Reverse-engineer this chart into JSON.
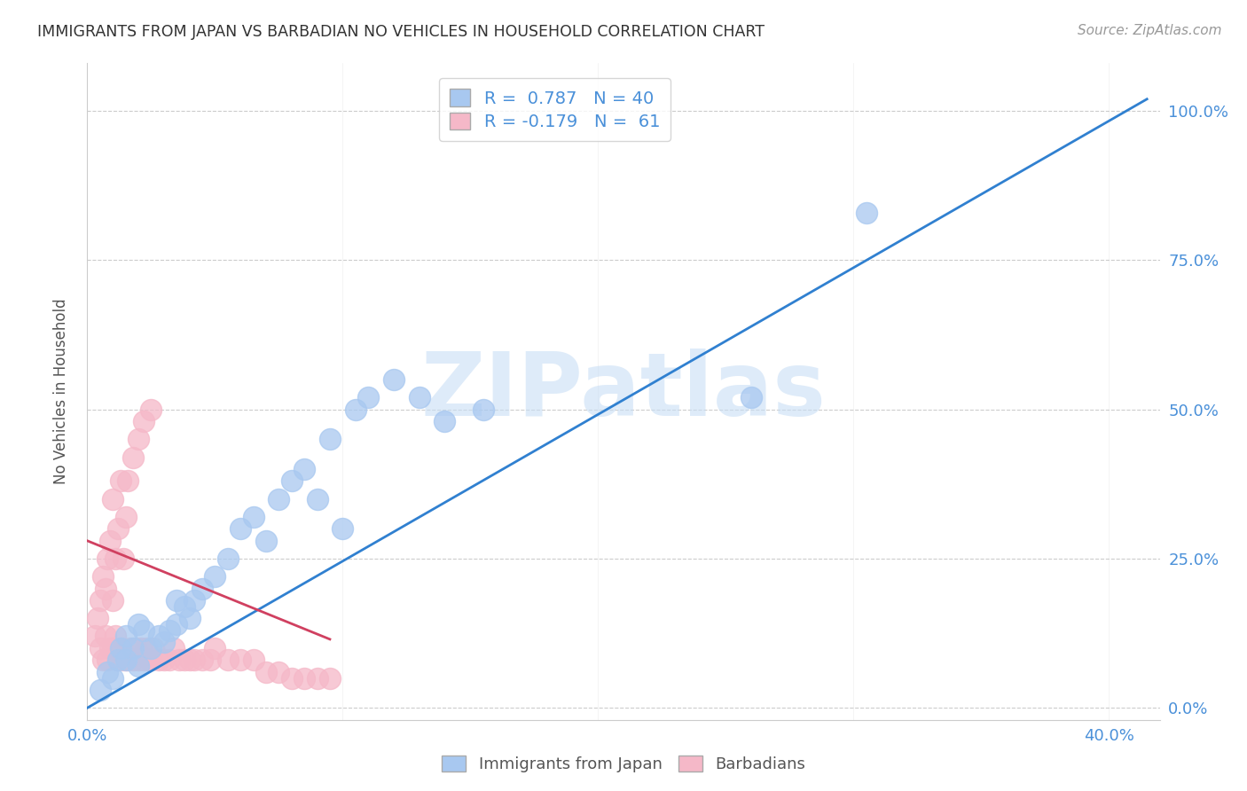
{
  "title": "IMMIGRANTS FROM JAPAN VS BARBADIAN NO VEHICLES IN HOUSEHOLD CORRELATION CHART",
  "source": "Source: ZipAtlas.com",
  "ylabel": "No Vehicles in Household",
  "xlim": [
    0.0,
    0.42
  ],
  "ylim": [
    -0.02,
    1.08
  ],
  "x_ticks": [
    0.0,
    0.1,
    0.2,
    0.3,
    0.4
  ],
  "x_tick_labels": [
    "0.0%",
    "",
    "",
    "",
    "40.0%"
  ],
  "y_ticks": [
    0.0,
    0.25,
    0.5,
    0.75,
    1.0
  ],
  "blue_R": 0.787,
  "blue_N": 40,
  "pink_R": -0.179,
  "pink_N": 61,
  "blue_color": "#A8C8F0",
  "pink_color": "#F5B8C8",
  "blue_line_color": "#3080D0",
  "pink_line_color": "#D04060",
  "watermark": "ZIPatlas",
  "legend_label_blue": "Immigrants from Japan",
  "legend_label_pink": "Barbadians",
  "blue_line_x0": 0.0,
  "blue_line_y0": 0.0,
  "blue_line_x1": 0.415,
  "blue_line_y1": 1.02,
  "pink_line_x0": 0.0,
  "pink_line_y0": 0.28,
  "pink_line_x1": 0.095,
  "pink_line_y1": 0.115,
  "blue_scatter_x": [
    0.005,
    0.008,
    0.01,
    0.012,
    0.013,
    0.015,
    0.015,
    0.018,
    0.02,
    0.02,
    0.022,
    0.025,
    0.028,
    0.03,
    0.032,
    0.035,
    0.035,
    0.038,
    0.04,
    0.042,
    0.045,
    0.05,
    0.055,
    0.06,
    0.065,
    0.07,
    0.075,
    0.08,
    0.085,
    0.09,
    0.095,
    0.1,
    0.105,
    0.11,
    0.12,
    0.13,
    0.14,
    0.155,
    0.26,
    0.305
  ],
  "blue_scatter_y": [
    0.03,
    0.06,
    0.05,
    0.08,
    0.1,
    0.08,
    0.12,
    0.1,
    0.07,
    0.14,
    0.13,
    0.1,
    0.12,
    0.11,
    0.13,
    0.14,
    0.18,
    0.17,
    0.15,
    0.18,
    0.2,
    0.22,
    0.25,
    0.3,
    0.32,
    0.28,
    0.35,
    0.38,
    0.4,
    0.35,
    0.45,
    0.3,
    0.5,
    0.52,
    0.55,
    0.52,
    0.48,
    0.5,
    0.52,
    0.83
  ],
  "pink_scatter_x": [
    0.003,
    0.004,
    0.005,
    0.005,
    0.006,
    0.006,
    0.007,
    0.007,
    0.008,
    0.008,
    0.009,
    0.009,
    0.01,
    0.01,
    0.01,
    0.011,
    0.011,
    0.012,
    0.012,
    0.013,
    0.013,
    0.014,
    0.014,
    0.015,
    0.015,
    0.016,
    0.016,
    0.017,
    0.018,
    0.018,
    0.019,
    0.02,
    0.02,
    0.021,
    0.022,
    0.022,
    0.023,
    0.024,
    0.025,
    0.025,
    0.026,
    0.028,
    0.03,
    0.032,
    0.034,
    0.036,
    0.038,
    0.04,
    0.042,
    0.045,
    0.048,
    0.05,
    0.055,
    0.06,
    0.065,
    0.07,
    0.075,
    0.08,
    0.085,
    0.09,
    0.095
  ],
  "pink_scatter_y": [
    0.12,
    0.15,
    0.1,
    0.18,
    0.08,
    0.22,
    0.12,
    0.2,
    0.08,
    0.25,
    0.1,
    0.28,
    0.1,
    0.18,
    0.35,
    0.12,
    0.25,
    0.08,
    0.3,
    0.1,
    0.38,
    0.08,
    0.25,
    0.08,
    0.32,
    0.08,
    0.38,
    0.1,
    0.08,
    0.42,
    0.1,
    0.08,
    0.45,
    0.1,
    0.08,
    0.48,
    0.1,
    0.08,
    0.08,
    0.5,
    0.1,
    0.08,
    0.08,
    0.08,
    0.1,
    0.08,
    0.08,
    0.08,
    0.08,
    0.08,
    0.08,
    0.1,
    0.08,
    0.08,
    0.08,
    0.06,
    0.06,
    0.05,
    0.05,
    0.05,
    0.05
  ],
  "background_color": "#FFFFFF",
  "grid_color": "#CCCCCC",
  "title_color": "#333333",
  "source_color": "#999999",
  "axis_label_color": "#555555",
  "tick_label_color": "#4A90D9"
}
